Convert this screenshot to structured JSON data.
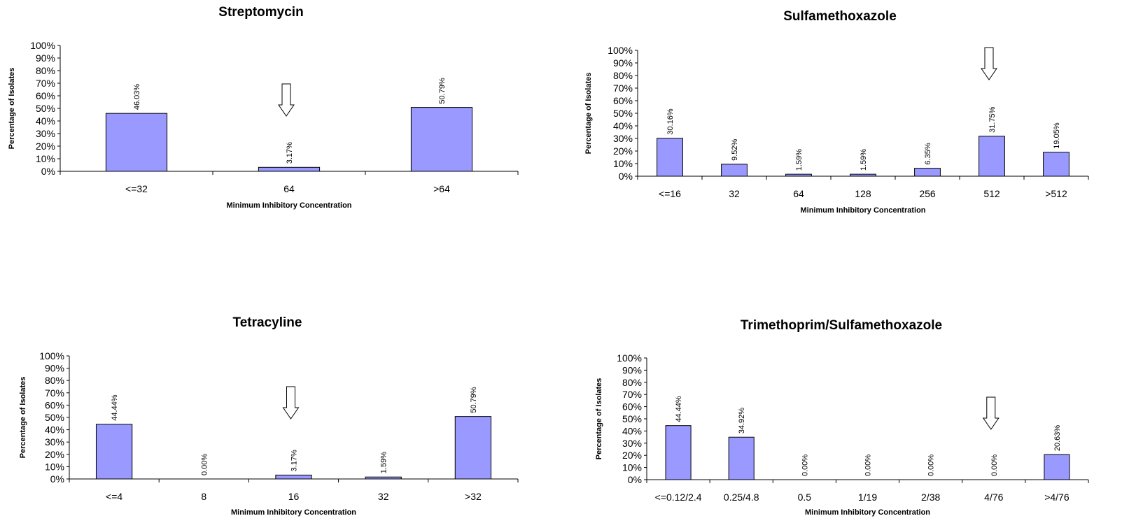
{
  "chart_data": [
    {
      "type": "bar",
      "title": "Streptomycin",
      "xlabel": "Minimum Inhibitory Concentration",
      "ylabel": "Percentage of Isolates",
      "ylim": [
        0,
        100
      ],
      "yticks": [
        "0%",
        "10%",
        "20%",
        "30%",
        "40%",
        "50%",
        "60%",
        "70%",
        "80%",
        "90%",
        "100%"
      ],
      "categories": [
        "<=32",
        "64",
        ">64"
      ],
      "values": [
        46.03,
        3.17,
        50.79
      ],
      "data_labels": [
        "46.03%",
        "3.17%",
        "50.79%"
      ],
      "breakpoint_arrow_category": "64",
      "bar_color": "#9999ff",
      "grid": false,
      "legend": "none"
    },
    {
      "type": "bar",
      "title": "Sulfamethoxazole",
      "xlabel": "Minimum Inhibitory Concentration",
      "ylabel": "Percentage of Isolates",
      "ylim": [
        0,
        100
      ],
      "yticks": [
        "0%",
        "10%",
        "20%",
        "30%",
        "40%",
        "50%",
        "60%",
        "70%",
        "80%",
        "90%",
        "100%"
      ],
      "categories": [
        "<=16",
        "32",
        "64",
        "128",
        "256",
        "512",
        ">512"
      ],
      "values": [
        30.16,
        9.52,
        1.59,
        1.59,
        6.35,
        31.75,
        19.05
      ],
      "data_labels": [
        "30.16%",
        "9.52%",
        "1.59%",
        "1.59%",
        "6.35%",
        "31.75%",
        "19.05%"
      ],
      "breakpoint_arrow_category": "512",
      "bar_color": "#9999ff",
      "grid": false,
      "legend": "none"
    },
    {
      "type": "bar",
      "title": "Tetracyline",
      "xlabel": "Minimum Inhibitory Concentration",
      "ylabel": "Percentage of Isolates",
      "ylim": [
        0,
        100
      ],
      "yticks": [
        "0%",
        "10%",
        "20%",
        "30%",
        "40%",
        "50%",
        "60%",
        "70%",
        "80%",
        "90%",
        "100%"
      ],
      "categories": [
        "<=4",
        "8",
        "16",
        "32",
        ">32"
      ],
      "values": [
        44.44,
        0.0,
        3.17,
        1.59,
        50.79
      ],
      "data_labels": [
        "44.44%",
        "0.00%",
        "3.17%",
        "1.59%",
        "50.79%"
      ],
      "breakpoint_arrow_category": "16",
      "bar_color": "#9999ff",
      "grid": false,
      "legend": "none"
    },
    {
      "type": "bar",
      "title": "Trimethoprim/Sulfamethoxazole",
      "xlabel": "Minimum Inhibitory Concentration",
      "ylabel": "Percentage of Isolates",
      "ylim": [
        0,
        100
      ],
      "yticks": [
        "0%",
        "10%",
        "20%",
        "30%",
        "40%",
        "50%",
        "60%",
        "70%",
        "80%",
        "90%",
        "100%"
      ],
      "categories": [
        "<=0.12/2.4",
        "0.25/4.8",
        "0.5",
        "1/19",
        "2/38",
        "4/76",
        ">4/76"
      ],
      "values": [
        44.44,
        34.92,
        0.0,
        0.0,
        0.0,
        0.0,
        20.63
      ],
      "data_labels": [
        "44.44%",
        "34.92%",
        "0.00%",
        "0.00%",
        "0.00%",
        "0.00%",
        "20.63%"
      ],
      "breakpoint_arrow_category": "4/76",
      "bar_color": "#9999ff",
      "grid": false,
      "legend": "none"
    }
  ]
}
